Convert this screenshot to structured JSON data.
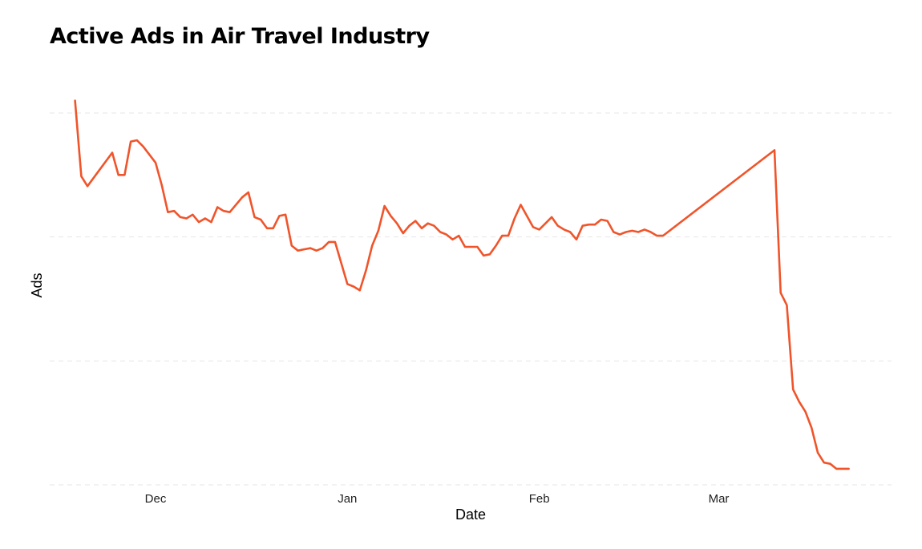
{
  "chart_data": {
    "type": "line",
    "title": "Active Ads in Air Travel Industry",
    "xlabel": "Date",
    "ylabel": "Ads",
    "x_ticks": [
      "Dec",
      "Jan",
      "Feb",
      "Mar"
    ],
    "y_tick_labels_shown": false,
    "grid": "horizontal dashed",
    "ylim": [
      0,
      3
    ],
    "colors": {
      "series": "#f0542a",
      "grid": "#e6e6e6"
    },
    "series": [
      {
        "points": [
          [
            "2019-11-18",
            3.1
          ],
          [
            "2019-11-19",
            2.49
          ],
          [
            "2019-11-20",
            2.41
          ],
          [
            "2019-11-24",
            2.68
          ],
          [
            "2019-11-25",
            2.5
          ],
          [
            "2019-11-26",
            2.5
          ],
          [
            "2019-11-27",
            2.77
          ],
          [
            "2019-11-28",
            2.78
          ],
          [
            "2019-11-29",
            2.73
          ],
          [
            "2019-12-01",
            2.6
          ],
          [
            "2019-12-02",
            2.42
          ],
          [
            "2019-12-03",
            2.2
          ],
          [
            "2019-12-04",
            2.21
          ],
          [
            "2019-12-05",
            2.16
          ],
          [
            "2019-12-06",
            2.15
          ],
          [
            "2019-12-07",
            2.18
          ],
          [
            "2019-12-08",
            2.12
          ],
          [
            "2019-12-09",
            2.15
          ],
          [
            "2019-12-10",
            2.12
          ],
          [
            "2019-12-11",
            2.24
          ],
          [
            "2019-12-12",
            2.21
          ],
          [
            "2019-12-13",
            2.2
          ],
          [
            "2019-12-15",
            2.32
          ],
          [
            "2019-12-16",
            2.36
          ],
          [
            "2019-12-17",
            2.16
          ],
          [
            "2019-12-18",
            2.14
          ],
          [
            "2019-12-19",
            2.07
          ],
          [
            "2019-12-20",
            2.07
          ],
          [
            "2019-12-21",
            2.17
          ],
          [
            "2019-12-22",
            2.18
          ],
          [
            "2019-12-23",
            1.93
          ],
          [
            "2019-12-24",
            1.89
          ],
          [
            "2019-12-26",
            1.91
          ],
          [
            "2019-12-27",
            1.89
          ],
          [
            "2019-12-28",
            1.91
          ],
          [
            "2019-12-29",
            1.96
          ],
          [
            "2019-12-30",
            1.96
          ],
          [
            "2020-01-01",
            1.62
          ],
          [
            "2020-01-02",
            1.6
          ],
          [
            "2020-01-03",
            1.57
          ],
          [
            "2020-01-04",
            1.73
          ],
          [
            "2020-01-05",
            1.93
          ],
          [
            "2020-01-06",
            2.05
          ],
          [
            "2020-01-07",
            2.25
          ],
          [
            "2020-01-08",
            2.17
          ],
          [
            "2020-01-09",
            2.11
          ],
          [
            "2020-01-10",
            2.03
          ],
          [
            "2020-01-11",
            2.09
          ],
          [
            "2020-01-12",
            2.13
          ],
          [
            "2020-01-13",
            2.07
          ],
          [
            "2020-01-14",
            2.11
          ],
          [
            "2020-01-15",
            2.09
          ],
          [
            "2020-01-16",
            2.04
          ],
          [
            "2020-01-17",
            2.02
          ],
          [
            "2020-01-18",
            1.98
          ],
          [
            "2020-01-19",
            2.01
          ],
          [
            "2020-01-20",
            1.92
          ],
          [
            "2020-01-21",
            1.92
          ],
          [
            "2020-01-22",
            1.92
          ],
          [
            "2020-01-23",
            1.85
          ],
          [
            "2020-01-24",
            1.86
          ],
          [
            "2020-01-25",
            1.93
          ],
          [
            "2020-01-26",
            2.01
          ],
          [
            "2020-01-27",
            2.01
          ],
          [
            "2020-01-28",
            2.15
          ],
          [
            "2020-01-29",
            2.26
          ],
          [
            "2020-01-30",
            2.17
          ],
          [
            "2020-01-31",
            2.08
          ],
          [
            "2020-02-01",
            2.06
          ],
          [
            "2020-02-02",
            2.11
          ],
          [
            "2020-02-03",
            2.16
          ],
          [
            "2020-02-04",
            2.09
          ],
          [
            "2020-02-05",
            2.06
          ],
          [
            "2020-02-06",
            2.04
          ],
          [
            "2020-02-07",
            1.98
          ],
          [
            "2020-02-08",
            2.09
          ],
          [
            "2020-02-09",
            2.1
          ],
          [
            "2020-02-10",
            2.1
          ],
          [
            "2020-02-11",
            2.14
          ],
          [
            "2020-02-12",
            2.13
          ],
          [
            "2020-02-13",
            2.04
          ],
          [
            "2020-02-14",
            2.02
          ],
          [
            "2020-02-15",
            2.04
          ],
          [
            "2020-02-16",
            2.05
          ],
          [
            "2020-02-17",
            2.04
          ],
          [
            "2020-02-18",
            2.06
          ],
          [
            "2020-02-19",
            2.04
          ],
          [
            "2020-02-20",
            2.01
          ],
          [
            "2020-02-21",
            2.01
          ],
          [
            "2020-03-10",
            2.7
          ],
          [
            "2020-03-11",
            1.55
          ],
          [
            "2020-03-12",
            1.45
          ],
          [
            "2020-03-13",
            0.77
          ],
          [
            "2020-03-14",
            0.67
          ],
          [
            "2020-03-15",
            0.59
          ],
          [
            "2020-03-16",
            0.46
          ],
          [
            "2020-03-17",
            0.26
          ],
          [
            "2020-03-18",
            0.18
          ],
          [
            "2020-03-19",
            0.17
          ],
          [
            "2020-03-20",
            0.13
          ],
          [
            "2020-03-21",
            0.13
          ],
          [
            "2020-03-22",
            0.13
          ]
        ]
      }
    ]
  }
}
